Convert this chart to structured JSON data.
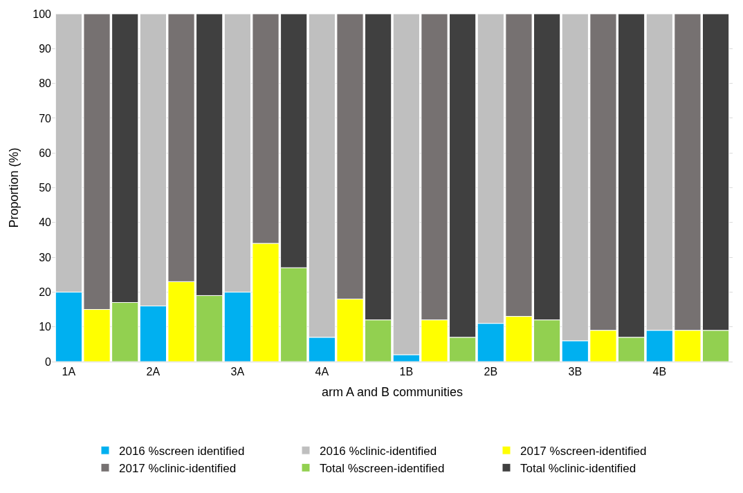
{
  "chart_data": {
    "type": "bar",
    "stacked": true,
    "xlabel": "arm A and B communities",
    "ylabel": "Proportion (%)",
    "categories": [
      "1A",
      null,
      null,
      "2A",
      null,
      null,
      "3A",
      null,
      null,
      "4A",
      null,
      null,
      "1B",
      null,
      null,
      "2B",
      null,
      null,
      "3B",
      null,
      null,
      "4B",
      null,
      null
    ],
    "series": [
      {
        "name": "2016 %screen identified",
        "color": "#00b0f0",
        "values": [
          20,
          null,
          null,
          16,
          null,
          null,
          20,
          null,
          null,
          7,
          null,
          null,
          2,
          null,
          null,
          11,
          null,
          null,
          6,
          null,
          null,
          9,
          null,
          null
        ]
      },
      {
        "name": "2016 %clinic-identified",
        "color": "#bfbfbf",
        "values": [
          80,
          null,
          null,
          84,
          null,
          null,
          80,
          null,
          null,
          93,
          null,
          null,
          98,
          null,
          null,
          89,
          null,
          null,
          94,
          null,
          null,
          91,
          null,
          null
        ]
      },
      {
        "name": "2017 %screen-identified",
        "color": "#ffff00",
        "values": [
          null,
          15,
          null,
          null,
          23,
          null,
          null,
          34,
          null,
          null,
          18,
          null,
          null,
          12,
          null,
          null,
          13,
          null,
          null,
          9,
          null,
          null,
          9,
          null
        ]
      },
      {
        "name": "2017 %clinic-identified",
        "color": "#767171",
        "values": [
          null,
          85,
          null,
          null,
          77,
          null,
          null,
          66,
          null,
          null,
          82,
          null,
          null,
          88,
          null,
          null,
          87,
          null,
          null,
          91,
          null,
          null,
          91,
          null
        ]
      },
      {
        "name": "Total %screen-identified",
        "color": "#92d050",
        "values": [
          null,
          null,
          17,
          null,
          null,
          19,
          null,
          null,
          27,
          null,
          null,
          12,
          null,
          null,
          7,
          null,
          null,
          12,
          null,
          null,
          7,
          null,
          null,
          9
        ]
      },
      {
        "name": "Total %clinic-identified",
        "color": "#404040",
        "values": [
          null,
          null,
          83,
          null,
          null,
          81,
          null,
          null,
          73,
          null,
          null,
          88,
          null,
          null,
          93,
          null,
          null,
          88,
          null,
          null,
          93,
          null,
          null,
          91
        ]
      }
    ],
    "ylim": [
      0,
      100
    ],
    "yticks": [
      0,
      10,
      20,
      30,
      40,
      50,
      60,
      70,
      80,
      90,
      100
    ],
    "grid": "y",
    "legend": "bottom"
  }
}
